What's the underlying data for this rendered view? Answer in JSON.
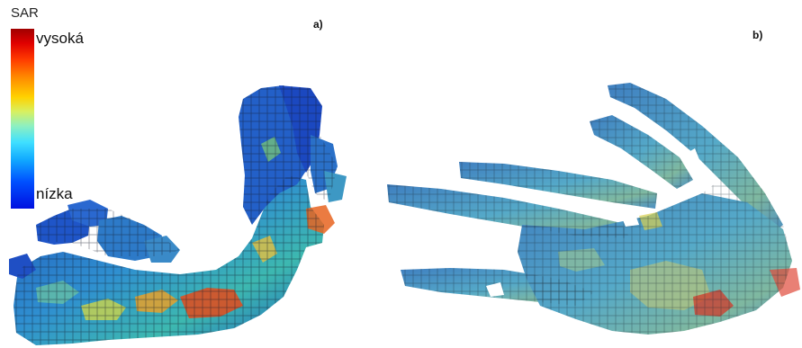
{
  "legend": {
    "title": "SAR",
    "high_label": "vysoká",
    "low_label": "nízka",
    "colors": [
      "#a00000",
      "#e00000",
      "#ff3a00",
      "#ff8a00",
      "#ffd200",
      "#8ef0c0",
      "#40e0ff",
      "#0050ff",
      "#0010e0"
    ]
  },
  "panels": [
    {
      "label": "a)"
    },
    {
      "label": "b)"
    }
  ]
}
